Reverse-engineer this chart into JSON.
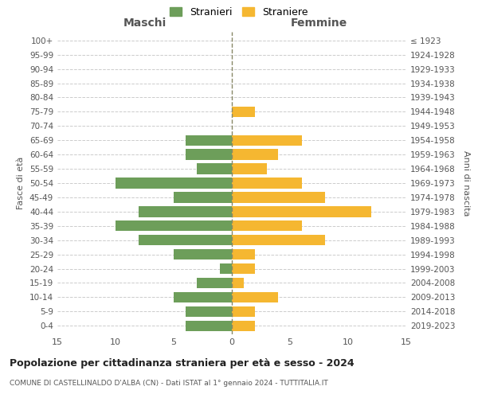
{
  "age_groups": [
    "0-4",
    "5-9",
    "10-14",
    "15-19",
    "20-24",
    "25-29",
    "30-34",
    "35-39",
    "40-44",
    "45-49",
    "50-54",
    "55-59",
    "60-64",
    "65-69",
    "70-74",
    "75-79",
    "80-84",
    "85-89",
    "90-94",
    "95-99",
    "100+"
  ],
  "birth_years": [
    "2019-2023",
    "2014-2018",
    "2009-2013",
    "2004-2008",
    "1999-2003",
    "1994-1998",
    "1989-1993",
    "1984-1988",
    "1979-1983",
    "1974-1978",
    "1969-1973",
    "1964-1968",
    "1959-1963",
    "1954-1958",
    "1949-1953",
    "1944-1948",
    "1939-1943",
    "1934-1938",
    "1929-1933",
    "1924-1928",
    "≤ 1923"
  ],
  "males": [
    4,
    4,
    5,
    3,
    1,
    5,
    8,
    10,
    8,
    5,
    10,
    3,
    4,
    4,
    0,
    0,
    0,
    0,
    0,
    0,
    0
  ],
  "females": [
    2,
    2,
    4,
    1,
    2,
    2,
    8,
    6,
    12,
    8,
    6,
    3,
    4,
    6,
    0,
    2,
    0,
    0,
    0,
    0,
    0
  ],
  "male_color": "#6d9e5a",
  "female_color": "#f5b731",
  "bg_color": "#ffffff",
  "grid_color": "#cccccc",
  "dashed_line_color": "#888866",
  "bar_height": 0.75,
  "xlim": 15,
  "title": "Popolazione per cittadinanza straniera per età e sesso - 2024",
  "subtitle": "COMUNE DI CASTELLINALDO D'ALBA (CN) - Dati ISTAT al 1° gennaio 2024 - TUTTITALIA.IT",
  "xlabel_left": "Maschi",
  "xlabel_right": "Femmine",
  "ylabel_left": "Fasce di età",
  "ylabel_right": "Anni di nascita",
  "legend_male": "Stranieri",
  "legend_female": "Straniere",
  "xticks": [
    -15,
    -10,
    -5,
    0,
    5,
    10,
    15
  ],
  "xtick_labels": [
    "15",
    "10",
    "5",
    "0",
    "5",
    "10",
    "15"
  ]
}
